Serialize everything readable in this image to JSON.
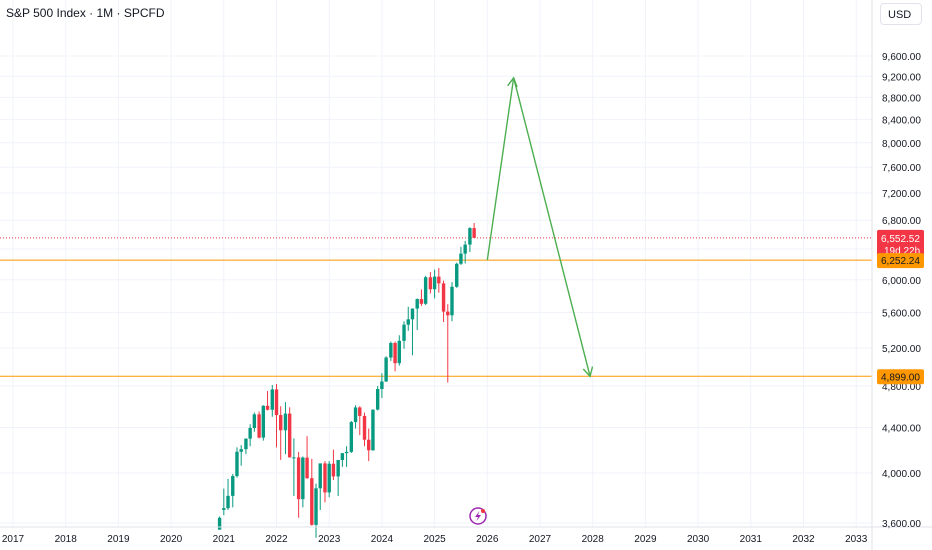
{
  "header": {
    "title": "S&P 500 Index · 1M · SPCFD",
    "currency": "USD"
  },
  "colors": {
    "up": "#089981",
    "down": "#f23645",
    "arrow": "#4caf50",
    "level": "#ff9800",
    "current": "#f23645"
  },
  "chart_data": {
    "type": "candlestick",
    "y_ticks": [
      "3,600.00",
      "4,000.00",
      "4,400.00",
      "4,800.00",
      "5,200.00",
      "5,600.00",
      "6,000.00",
      "6,400.00",
      "6,800.00",
      "7,200.00",
      "7,600.00",
      "8,000.00",
      "8,400.00",
      "8,800.00",
      "9,200.00",
      "9,600.00"
    ],
    "x_ticks": [
      "2017",
      "2018",
      "2019",
      "2020",
      "2021",
      "2022",
      "2023",
      "2024",
      "2025",
      "2026",
      "2027",
      "2028",
      "2029",
      "2030",
      "2031",
      "2032",
      "2033"
    ],
    "ylim": [
      3550,
      10000
    ],
    "price_scale": "log",
    "candles": [
      {
        "t": 2020.92,
        "o": 3550,
        "h": 3650,
        "l": 3550,
        "c": 3640
      },
      {
        "t": 2021.0,
        "o": 3700,
        "h": 3870,
        "l": 3660,
        "c": 3714
      },
      {
        "t": 2021.08,
        "o": 3714,
        "h": 3950,
        "l": 3700,
        "c": 3811
      },
      {
        "t": 2021.17,
        "o": 3811,
        "h": 3990,
        "l": 3720,
        "c": 3973
      },
      {
        "t": 2021.25,
        "o": 3973,
        "h": 4220,
        "l": 3960,
        "c": 4181
      },
      {
        "t": 2021.33,
        "o": 4181,
        "h": 4240,
        "l": 4060,
        "c": 4204
      },
      {
        "t": 2021.42,
        "o": 4204,
        "h": 4300,
        "l": 4160,
        "c": 4298
      },
      {
        "t": 2021.5,
        "o": 4298,
        "h": 4430,
        "l": 4230,
        "c": 4395
      },
      {
        "t": 2021.58,
        "o": 4395,
        "h": 4540,
        "l": 4360,
        "c": 4523
      },
      {
        "t": 2021.67,
        "o": 4523,
        "h": 4550,
        "l": 4300,
        "c": 4307
      },
      {
        "t": 2021.75,
        "o": 4307,
        "h": 4610,
        "l": 4280,
        "c": 4605
      },
      {
        "t": 2021.83,
        "o": 4605,
        "h": 4750,
        "l": 4560,
        "c": 4567
      },
      {
        "t": 2021.92,
        "o": 4567,
        "h": 4810,
        "l": 4500,
        "c": 4766
      },
      {
        "t": 2022.0,
        "o": 4766,
        "h": 4820,
        "l": 4220,
        "c": 4516
      },
      {
        "t": 2022.08,
        "o": 4516,
        "h": 4600,
        "l": 4110,
        "c": 4374
      },
      {
        "t": 2022.17,
        "o": 4374,
        "h": 4640,
        "l": 4160,
        "c": 4530
      },
      {
        "t": 2022.25,
        "o": 4530,
        "h": 4590,
        "l": 4130,
        "c": 4132
      },
      {
        "t": 2022.33,
        "o": 4132,
        "h": 4300,
        "l": 3810,
        "c": 4132
      },
      {
        "t": 2022.42,
        "o": 4132,
        "h": 4180,
        "l": 3640,
        "c": 3785
      },
      {
        "t": 2022.5,
        "o": 3785,
        "h": 4140,
        "l": 3720,
        "c": 4130
      },
      {
        "t": 2022.58,
        "o": 4130,
        "h": 4320,
        "l": 3950,
        "c": 3955
      },
      {
        "t": 2022.67,
        "o": 3955,
        "h": 4120,
        "l": 3580,
        "c": 3586
      },
      {
        "t": 2022.75,
        "o": 3586,
        "h": 3910,
        "l": 3490,
        "c": 3872
      },
      {
        "t": 2022.83,
        "o": 3872,
        "h": 4080,
        "l": 3700,
        "c": 4080
      },
      {
        "t": 2022.92,
        "o": 4080,
        "h": 4100,
        "l": 3760,
        "c": 3839
      },
      {
        "t": 2023.0,
        "o": 3839,
        "h": 4100,
        "l": 3800,
        "c": 4077
      },
      {
        "t": 2023.08,
        "o": 4077,
        "h": 4200,
        "l": 3940,
        "c": 3970
      },
      {
        "t": 2023.17,
        "o": 3970,
        "h": 4110,
        "l": 3810,
        "c": 4109
      },
      {
        "t": 2023.25,
        "o": 4109,
        "h": 4170,
        "l": 4050,
        "c": 4169
      },
      {
        "t": 2023.33,
        "o": 4169,
        "h": 4230,
        "l": 4050,
        "c": 4180
      },
      {
        "t": 2023.42,
        "o": 4180,
        "h": 4460,
        "l": 4170,
        "c": 4450
      },
      {
        "t": 2023.5,
        "o": 4450,
        "h": 4610,
        "l": 4390,
        "c": 4589
      },
      {
        "t": 2023.58,
        "o": 4589,
        "h": 4600,
        "l": 4330,
        "c": 4508
      },
      {
        "t": 2023.67,
        "o": 4508,
        "h": 4540,
        "l": 4230,
        "c": 4288
      },
      {
        "t": 2023.75,
        "o": 4288,
        "h": 4390,
        "l": 4100,
        "c": 4194
      },
      {
        "t": 2023.83,
        "o": 4194,
        "h": 4570,
        "l": 4190,
        "c": 4568
      },
      {
        "t": 2023.92,
        "o": 4568,
        "h": 4800,
        "l": 4560,
        "c": 4770
      },
      {
        "t": 2024.0,
        "o": 4770,
        "h": 4930,
        "l": 4680,
        "c": 4846
      },
      {
        "t": 2024.08,
        "o": 4846,
        "h": 5110,
        "l": 4840,
        "c": 5096
      },
      {
        "t": 2024.17,
        "o": 5096,
        "h": 5270,
        "l": 5060,
        "c": 5254
      },
      {
        "t": 2024.25,
        "o": 5254,
        "h": 5270,
        "l": 4950,
        "c": 5036
      },
      {
        "t": 2024.33,
        "o": 5036,
        "h": 5340,
        "l": 5010,
        "c": 5278
      },
      {
        "t": 2024.42,
        "o": 5278,
        "h": 5500,
        "l": 5190,
        "c": 5460
      },
      {
        "t": 2024.5,
        "o": 5460,
        "h": 5670,
        "l": 5390,
        "c": 5522
      },
      {
        "t": 2024.58,
        "o": 5522,
        "h": 5650,
        "l": 5120,
        "c": 5648
      },
      {
        "t": 2024.67,
        "o": 5648,
        "h": 5770,
        "l": 5400,
        "c": 5762
      },
      {
        "t": 2024.75,
        "o": 5762,
        "h": 5880,
        "l": 5680,
        "c": 5705
      },
      {
        "t": 2024.83,
        "o": 5705,
        "h": 6050,
        "l": 5690,
        "c": 6032
      },
      {
        "t": 2024.92,
        "o": 6032,
        "h": 6100,
        "l": 5830,
        "c": 5882
      },
      {
        "t": 2025.0,
        "o": 5882,
        "h": 6130,
        "l": 5770,
        "c": 6040
      },
      {
        "t": 2025.08,
        "o": 6040,
        "h": 6150,
        "l": 5840,
        "c": 5955
      },
      {
        "t": 2025.17,
        "o": 5955,
        "h": 5990,
        "l": 5490,
        "c": 5612
      },
      {
        "t": 2025.25,
        "o": 5612,
        "h": 5700,
        "l": 4835,
        "c": 5569
      },
      {
        "t": 2025.33,
        "o": 5569,
        "h": 5970,
        "l": 5500,
        "c": 5912
      },
      {
        "t": 2025.42,
        "o": 5912,
        "h": 6220,
        "l": 5900,
        "c": 6205
      },
      {
        "t": 2025.5,
        "o": 6205,
        "h": 6430,
        "l": 6190,
        "c": 6339
      },
      {
        "t": 2025.58,
        "o": 6339,
        "h": 6510,
        "l": 6210,
        "c": 6460
      },
      {
        "t": 2025.67,
        "o": 6460,
        "h": 6700,
        "l": 6360,
        "c": 6688
      },
      {
        "t": 2025.75,
        "o": 6688,
        "h": 6760,
        "l": 6550,
        "c": 6552.52
      }
    ],
    "current_price": {
      "label": "6,552.52",
      "countdown": "19d 22h",
      "value": 6552.52
    },
    "levels": [
      {
        "label": "6,252.24",
        "value": 6252.24
      },
      {
        "label": "4,899.00",
        "value": 4899
      }
    ],
    "projection": {
      "points": [
        {
          "t": 2026.0,
          "v": 6252
        },
        {
          "t": 2026.5,
          "v": 9170
        },
        {
          "t": 2027.95,
          "v": 4899
        }
      ]
    }
  }
}
